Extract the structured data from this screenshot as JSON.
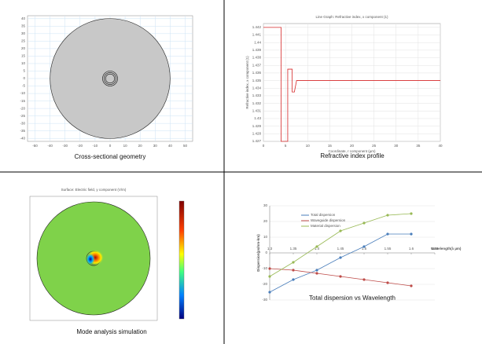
{
  "chart_data": [
    {
      "type": "geometry",
      "caption": "Cross-sectional geometry",
      "xlim": [
        -55,
        55
      ],
      "ylim": [
        -42,
        42
      ],
      "xticks": [
        -50,
        -40,
        -30,
        -20,
        -10,
        0,
        10,
        20,
        30,
        40,
        50
      ],
      "yticks": [
        -40,
        -35,
        -30,
        -25,
        -20,
        -15,
        -10,
        -5,
        0,
        5,
        10,
        15,
        20,
        25,
        30,
        35,
        40
      ],
      "radii": [
        40,
        5,
        4,
        3
      ],
      "color": "#c8c8c8",
      "grid": true
    },
    {
      "type": "line",
      "caption": "Refractive index profile",
      "title": "Line Graph: Refractive index, x component (1)",
      "xlabel": "Coordinate, r component (µm)",
      "ylabel": "Refractive index, x component (1)",
      "xlim": [
        0,
        40
      ],
      "ylim": [
        1.427,
        1.4425
      ],
      "xticks": [
        0,
        5,
        10,
        15,
        20,
        25,
        30,
        35,
        40
      ],
      "yticks": [
        1.427,
        1.428,
        1.429,
        1.43,
        1.431,
        1.432,
        1.433,
        1.434,
        1.435,
        1.436,
        1.437,
        1.438,
        1.439,
        1.44,
        1.441,
        1.442
      ],
      "x": [
        0,
        4,
        4,
        5.5,
        5.5,
        6.5,
        6.5,
        7,
        7.5,
        40
      ],
      "series": [
        {
          "color": "#d62728",
          "values": [
            1.442,
            1.442,
            1.427,
            1.427,
            1.4365,
            1.4365,
            1.4335,
            1.4335,
            1.435,
            1.435
          ]
        }
      ],
      "grid": true
    },
    {
      "type": "mode-field",
      "caption": "Mode analysis simulation",
      "title": "Surface: Electric field, y component (V/m)",
      "xlim": [
        -45,
        45
      ],
      "ylim": [
        -45,
        45
      ],
      "radii": [
        40,
        5,
        4,
        3
      ],
      "color": "#7fd24a"
    },
    {
      "type": "line",
      "caption": "Total dispersion vs Wavelength",
      "xlabel": "Wavelength(λ µm)",
      "ylabel": "Dispersion(ps/nm-km)",
      "xlim": [
        1.3,
        1.65
      ],
      "ylim": [
        -30,
        30
      ],
      "xticks": [
        1.3,
        1.35,
        1.4,
        1.45,
        1.5,
        1.55,
        1.6,
        1.65
      ],
      "yticks": [
        -30,
        -20,
        -10,
        0,
        10,
        20,
        30
      ],
      "x": [
        1.3,
        1.35,
        1.4,
        1.45,
        1.5,
        1.55,
        1.6
      ],
      "series": [
        {
          "name": "Total dispersion",
          "color": "#4a7ebb",
          "values": [
            -25,
            -17,
            -11,
            -3,
            4,
            12,
            12
          ]
        },
        {
          "name": "Waveguide dispersion",
          "color": "#be4b48",
          "values": [
            -10,
            -11,
            -13,
            -15,
            -17,
            -19,
            -21
          ]
        },
        {
          "name": "Material dispersion",
          "color": "#98b954",
          "values": [
            -15,
            -6,
            4,
            14,
            19,
            24,
            25
          ]
        }
      ],
      "markers": true,
      "grid": true
    }
  ]
}
